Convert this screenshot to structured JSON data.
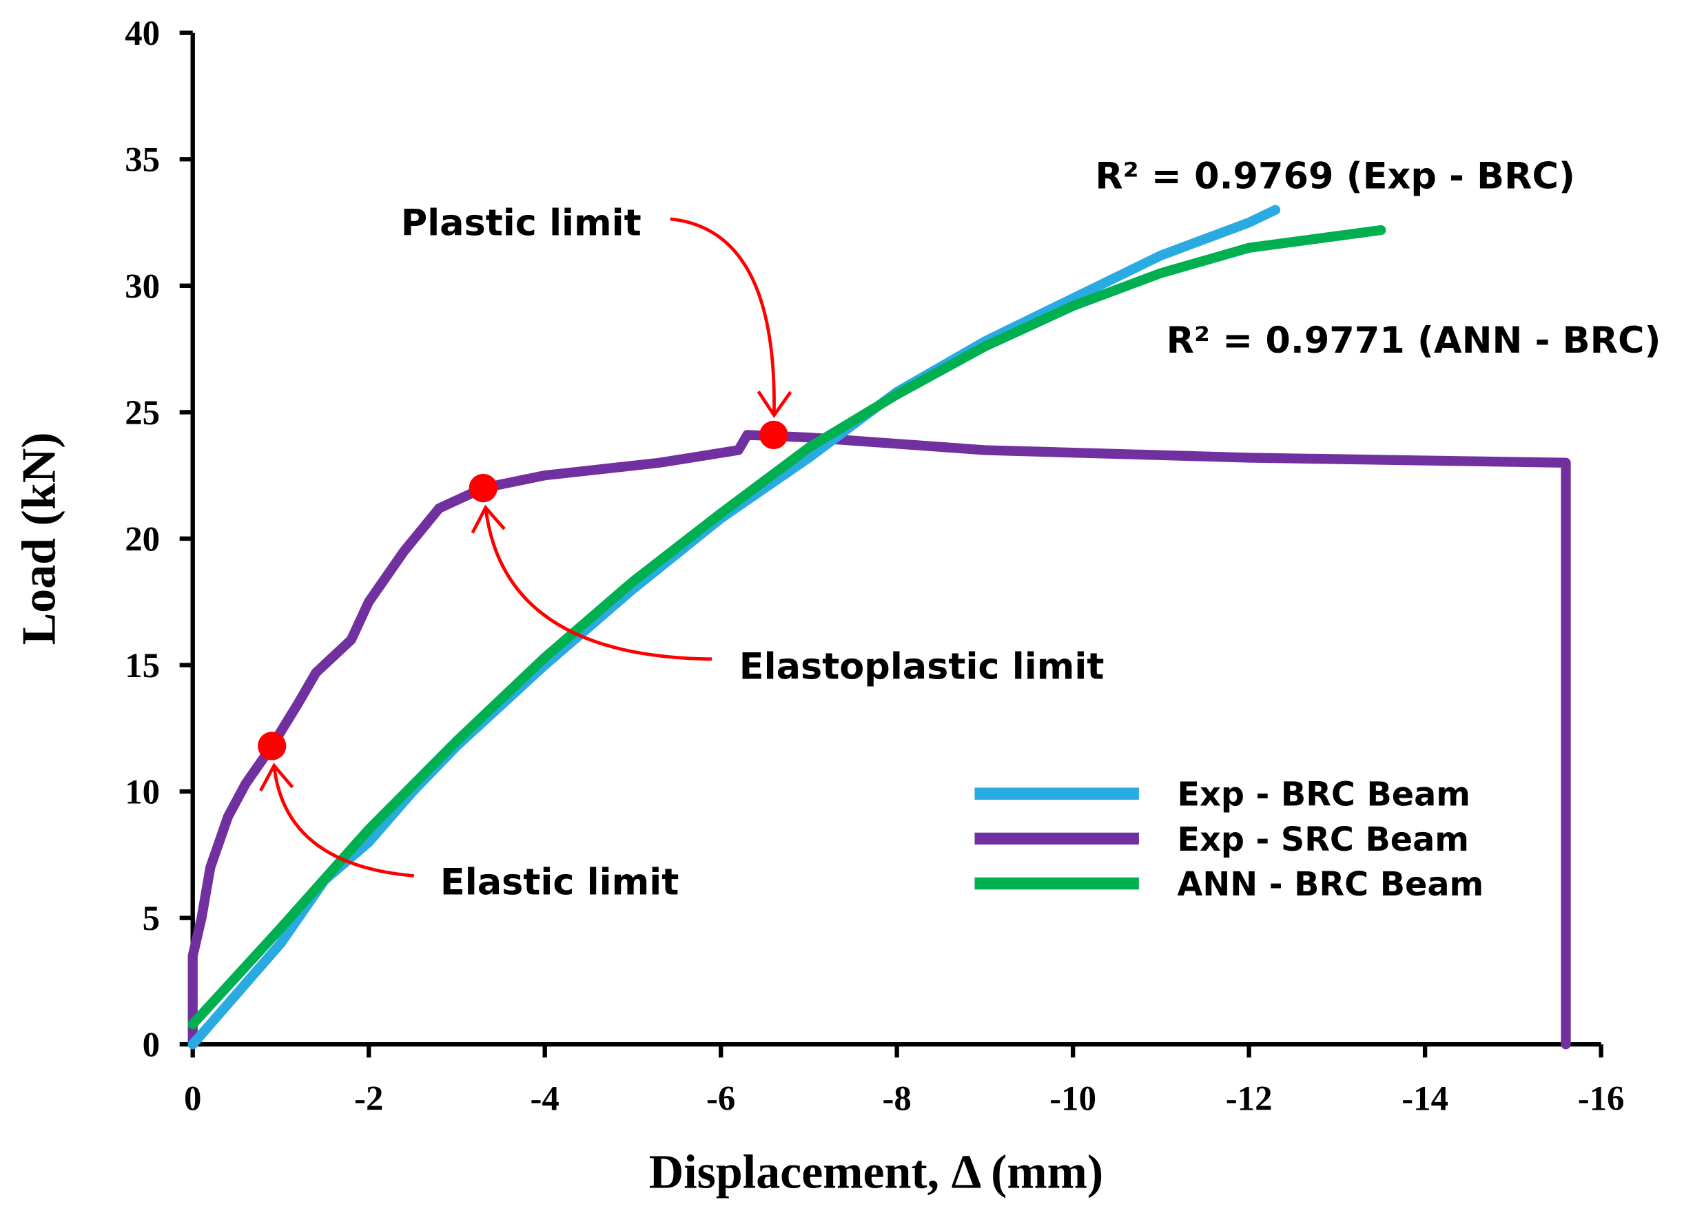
{
  "chart_data": {
    "type": "line",
    "xlabel": "Displacement, Δ  (mm)",
    "ylabel": "Load  (kN)",
    "xlim": [
      0,
      -16
    ],
    "xticks": [
      0,
      -2,
      -4,
      -6,
      -8,
      -10,
      -12,
      -14,
      -16
    ],
    "ylim": [
      0,
      40
    ],
    "yticks": [
      0,
      5,
      10,
      15,
      20,
      25,
      30,
      35,
      40
    ],
    "legend": "lower right",
    "series": [
      {
        "name": "Exp - BRC Beam",
        "color": "#29abe2",
        "x": [
          0,
          -0.5,
          -1,
          -1.5,
          -2,
          -2.5,
          -3,
          -4,
          -5,
          -6,
          -7,
          -8,
          -9,
          -10,
          -11,
          -12,
          -12.3
        ],
        "values": [
          0,
          2,
          4,
          6.5,
          8,
          10,
          11.8,
          15,
          18,
          20.8,
          23.2,
          25.8,
          27.8,
          29.5,
          31.2,
          32.5,
          33
        ]
      },
      {
        "name": "Exp - SRC Beam",
        "color": "#7030a0",
        "x": [
          0,
          0,
          -0.1,
          -0.2,
          -0.4,
          -0.6,
          -0.9,
          -1.2,
          -1.4,
          -1.8,
          -2,
          -2.4,
          -2.8,
          -3.3,
          -4,
          -5.3,
          -6.2,
          -6.3,
          -7,
          -9,
          -12,
          -15.6,
          -15.6
        ],
        "values": [
          0,
          3.5,
          5,
          7,
          9,
          10.3,
          11.8,
          13.5,
          14.7,
          16,
          17.5,
          19.5,
          21.2,
          22,
          22.5,
          23,
          23.5,
          24.1,
          24,
          23.5,
          23.2,
          23,
          0
        ]
      },
      {
        "name": "ANN - BRC Beam",
        "color": "#00b050",
        "x": [
          0,
          -1,
          -2,
          -3,
          -4,
          -5,
          -6,
          -7,
          -8,
          -9,
          -10,
          -11,
          -12,
          -13.5
        ],
        "values": [
          0.8,
          4.6,
          8.5,
          12,
          15.3,
          18.3,
          21,
          23.6,
          25.7,
          27.6,
          29.2,
          30.5,
          31.5,
          32.2
        ]
      }
    ],
    "annotations": [
      {
        "text": "Elastic limit",
        "x": -0.9,
        "y": 11.8
      },
      {
        "text": "Elastoplastic limit",
        "x": -3.3,
        "y": 22
      },
      {
        "text": "Plastic limit",
        "x": -6.6,
        "y": 24.1
      }
    ],
    "r2_labels": [
      "R² = 0.9769  (Exp - BRC)",
      "R² = 0.9771  (ANN - BRC)"
    ]
  }
}
